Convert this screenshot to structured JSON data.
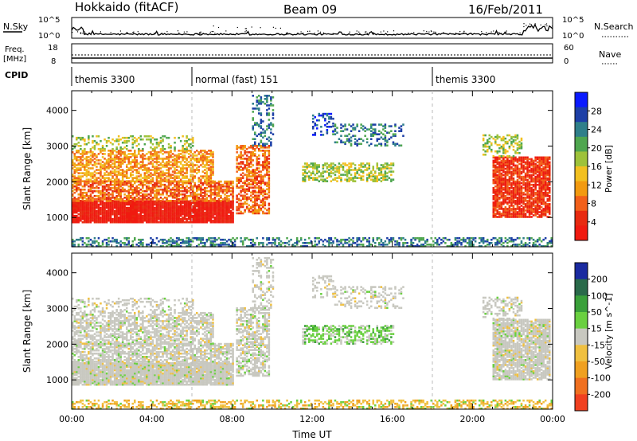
{
  "header": {
    "station": "Hokkaido (fitACF)",
    "beam": "Beam 09",
    "date": "16/Feb/2011"
  },
  "strip_labels": {
    "nsky": "N.Sky",
    "nsearch": "N.Search",
    "freq_line1": "Freq.",
    "freq_line2": "[MHz]",
    "nave": "Nave",
    "cpid": "CPID",
    "nsky_ticks": [
      "10^5",
      "10^0"
    ],
    "nsearch_ticks": [
      "10^5",
      "10^0"
    ],
    "freq_ticks": [
      "18",
      "8"
    ],
    "nave_ticks": [
      "60",
      "0"
    ]
  },
  "cpid_segments": [
    {
      "label": "themis 3300",
      "start_hour": 0,
      "end_hour": 6
    },
    {
      "label": "normal (fast) 151",
      "start_hour": 6,
      "end_hour": 18
    },
    {
      "label": "themis 3300",
      "start_hour": 18,
      "end_hour": 24
    }
  ],
  "chart_data": [
    {
      "type": "heatmap",
      "name": "power",
      "ylabel": "Slant Range [km]",
      "xlabel": "Time UT",
      "xlim": [
        0,
        24
      ],
      "ylim": [
        180,
        4550
      ],
      "x_ticks": [
        "00:00",
        "04:00",
        "08:00",
        "12:00",
        "16:00",
        "20:00",
        "00:00"
      ],
      "y_ticks": [
        1000,
        2000,
        3000,
        4000
      ],
      "colorbar": {
        "label": "Power [dB]",
        "ticks": [
          "4",
          "8",
          "12",
          "16",
          "20",
          "24",
          "28"
        ],
        "colors": [
          "#0a1aff",
          "#1d3fa6",
          "#2f7f8a",
          "#4fa64f",
          "#9ec23a",
          "#f2c020",
          "#f29a10",
          "#f2601a",
          "#e82a10",
          "#f01a10"
        ]
      }
    },
    {
      "type": "heatmap",
      "name": "velocity",
      "ylabel": "Slant Range [km]",
      "xlabel": "Time UT",
      "xlim": [
        0,
        24
      ],
      "ylim": [
        180,
        4550
      ],
      "x_ticks": [
        "00:00",
        "04:00",
        "08:00",
        "12:00",
        "16:00",
        "20:00",
        "00:00"
      ],
      "y_ticks": [
        1000,
        2000,
        3000,
        4000
      ],
      "colorbar": {
        "label": "Velocity [m s^-1]",
        "ticks": [
          "200",
          "100",
          "50",
          "15",
          "-15",
          "-50",
          "-100",
          "-200"
        ],
        "colors": [
          "#1a2aa0",
          "#2a6a4a",
          "#3aa03a",
          "#6ad040",
          "#c8c8c0",
          "#f0c040",
          "#f0a020",
          "#f07020",
          "#f04020"
        ]
      }
    }
  ],
  "time_label": "Time UT"
}
